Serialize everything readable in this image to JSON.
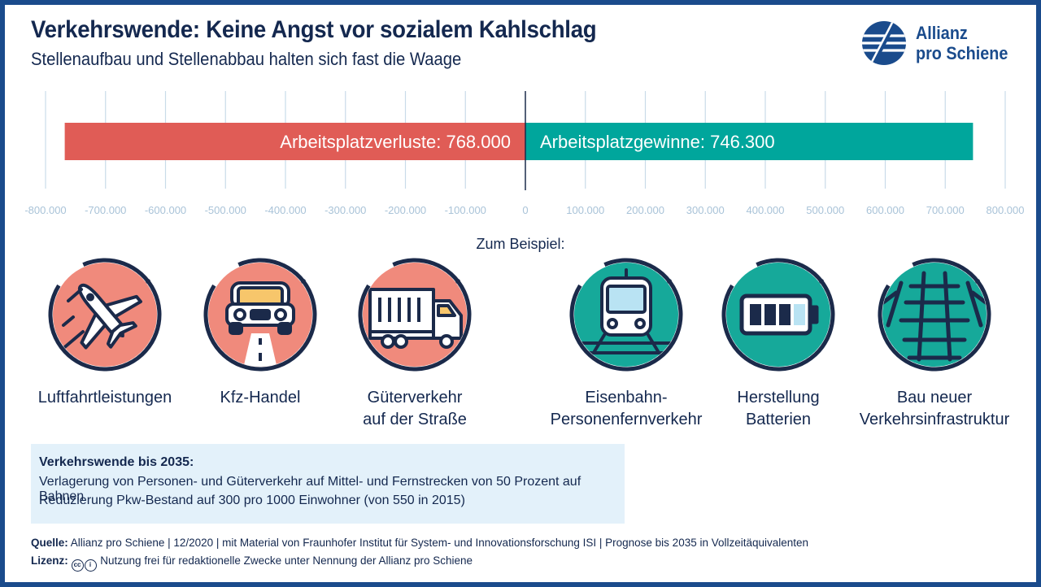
{
  "title": "Verkehrswende: Keine Angst vor sozialem Kahlschlag",
  "subtitle": "Stellenaufbau und Stellenabbau halten sich fast die Waage",
  "logo": {
    "line1": "Allianz",
    "line2": "pro Schiene"
  },
  "colors": {
    "loss": "#e05c56",
    "gain": "#00a69c",
    "navy": "#1b2a4a",
    "grid": "#c9dbe9",
    "tick": "#a9c3d8",
    "loss_icon_bg": "#f08a7c",
    "gain_icon_bg": "#16a99a",
    "box": "#e3f1fa"
  },
  "chart_data": {
    "type": "bar",
    "orientation": "horizontal",
    "categories": [
      "Arbeitsplatzverluste",
      "Arbeitsplatzgewinne"
    ],
    "values": [
      -768000,
      746300
    ],
    "data_labels": [
      "Arbeitsplatzverluste: 768.000",
      "Arbeitsplatzgewinne: 746.300"
    ],
    "xlim": [
      -800000,
      800000
    ],
    "ticks": [
      -800000,
      -700000,
      -600000,
      -500000,
      -400000,
      -300000,
      -200000,
      -100000,
      0,
      100000,
      200000,
      300000,
      400000,
      500000,
      600000,
      700000,
      800000
    ],
    "tick_labels": [
      "-800.000",
      "-700.000",
      "-600.000",
      "-500.000",
      "-400.000",
      "-300.000",
      "-200.000",
      "-100.000",
      "0",
      "100.000",
      "200.000",
      "300.000",
      "400.000",
      "500.000",
      "600.000",
      "700.000",
      "800.000"
    ],
    "grid": true,
    "zero_line": true
  },
  "examples_label": "Zum Beispiel:",
  "examples": [
    {
      "label1": "Luftfahrtleistungen",
      "label2": "",
      "icon": "airplane-icon",
      "kind": "loss"
    },
    {
      "label1": "Kfz-Handel",
      "label2": "",
      "icon": "car-icon",
      "kind": "loss"
    },
    {
      "label1": "Güterverkehr",
      "label2": "auf der Straße",
      "icon": "truck-icon",
      "kind": "loss"
    },
    {
      "label1": "Eisenbahn-",
      "label2": "Personenfernverkehr",
      "icon": "train-icon",
      "kind": "gain"
    },
    {
      "label1": "Herstellung",
      "label2": "Batterien",
      "icon": "battery-icon",
      "kind": "gain"
    },
    {
      "label1": "Bau neuer",
      "label2": "Verkehrsinfrastruktur",
      "icon": "railway-tracks-icon",
      "kind": "gain"
    }
  ],
  "info_box": {
    "title": "Verkehrswende bis 2035:",
    "line1": "Verlagerung von Personen- und Güterverkehr auf Mittel- und Fernstrecken von 50 Prozent auf Bahnen",
    "line2": "Reduzierung Pkw-Bestand auf 300 pro 1000 Einwohner (von 550 in 2015)"
  },
  "footer": {
    "source_label": "Quelle:",
    "source_text": "Allianz pro Schiene | 12/2020 | mit Material von Fraunhofer Institut für System- und Innovationsforschung ISI | Prognose bis 2035 in Vollzeitäquivalenten",
    "license_label": "Lizenz:",
    "license_text": "Nutzung frei für redaktionelle Zwecke unter Nennung der Allianz pro Schiene",
    "cc_icon": "cc-icon",
    "by_icon": "by-icon"
  }
}
